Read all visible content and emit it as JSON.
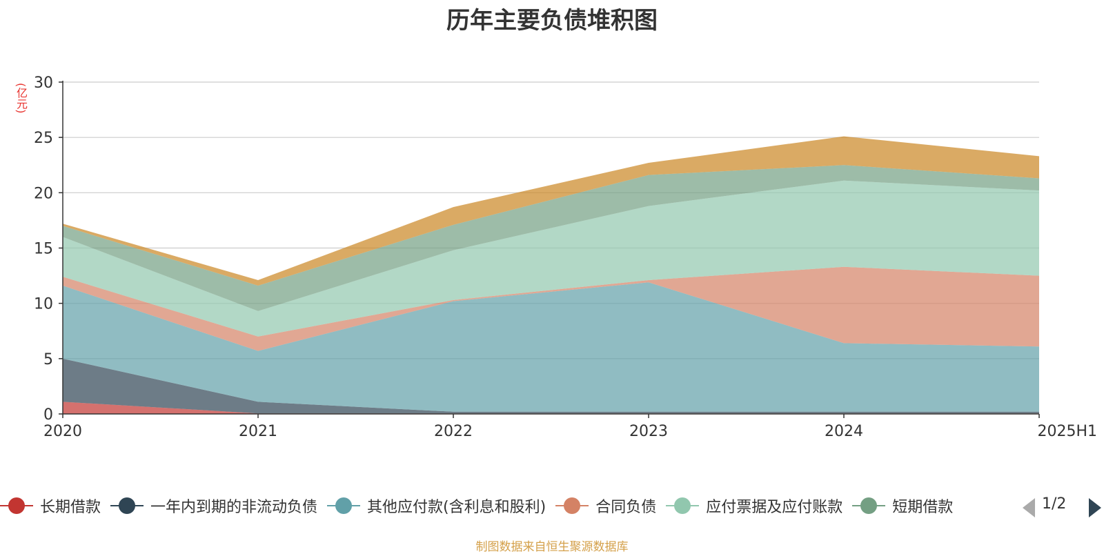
{
  "chart_data": {
    "type": "area",
    "title": "历年主要负债堆积图",
    "unit": "(亿元)",
    "stacked": true,
    "categories": [
      "2020",
      "2021",
      "2022",
      "2023",
      "2024",
      "2025H1"
    ],
    "ylim": [
      0,
      30
    ],
    "yticks": [
      0,
      5,
      10,
      15,
      20,
      25,
      30
    ],
    "grid": true,
    "legend_position": "bottom",
    "series": [
      {
        "name": "长期借款",
        "color": "#c23531",
        "values": [
          1.1,
          0.05,
          0.05,
          0.05,
          0.05,
          0.05
        ]
      },
      {
        "name": "一年内到期的非流动负债",
        "color": "#2f4554",
        "values": [
          3.9,
          1.05,
          0.15,
          0.15,
          0.15,
          0.15
        ]
      },
      {
        "name": "其他应付款(含利息和股利)",
        "color": "#61a0a8",
        "values": [
          6.6,
          4.6,
          10.0,
          11.7,
          6.2,
          5.9
        ]
      },
      {
        "name": "合同负债",
        "color": "#d48265",
        "values": [
          0.8,
          1.3,
          0.1,
          0.2,
          6.9,
          6.4
        ]
      },
      {
        "name": "应付票据及应付账款",
        "color": "#91c7ae",
        "values": [
          3.6,
          2.3,
          4.5,
          6.7,
          7.8,
          7.7
        ]
      },
      {
        "name": "短期借款",
        "color": "#749f83",
        "values": [
          1.0,
          2.3,
          2.3,
          2.8,
          1.4,
          1.1
        ]
      },
      {
        "name": "",
        "color": "#ca8622",
        "values": [
          0.2,
          0.5,
          1.6,
          1.1,
          2.6,
          2.0
        ]
      }
    ]
  },
  "legend": {
    "items": [
      {
        "label": "长期借款",
        "color": "#c23531"
      },
      {
        "label": "一年内到期的非流动负债",
        "color": "#2f4554"
      },
      {
        "label": "其他应付款(含利息和股利)",
        "color": "#61a0a8"
      },
      {
        "label": "合同负债",
        "color": "#d48265"
      },
      {
        "label": "应付票据及应付账款",
        "color": "#91c7ae"
      },
      {
        "label": "短期借款",
        "color": "#749f83"
      }
    ],
    "page_text": "1/2"
  },
  "source": "制图数据来自恒生聚源数据库"
}
